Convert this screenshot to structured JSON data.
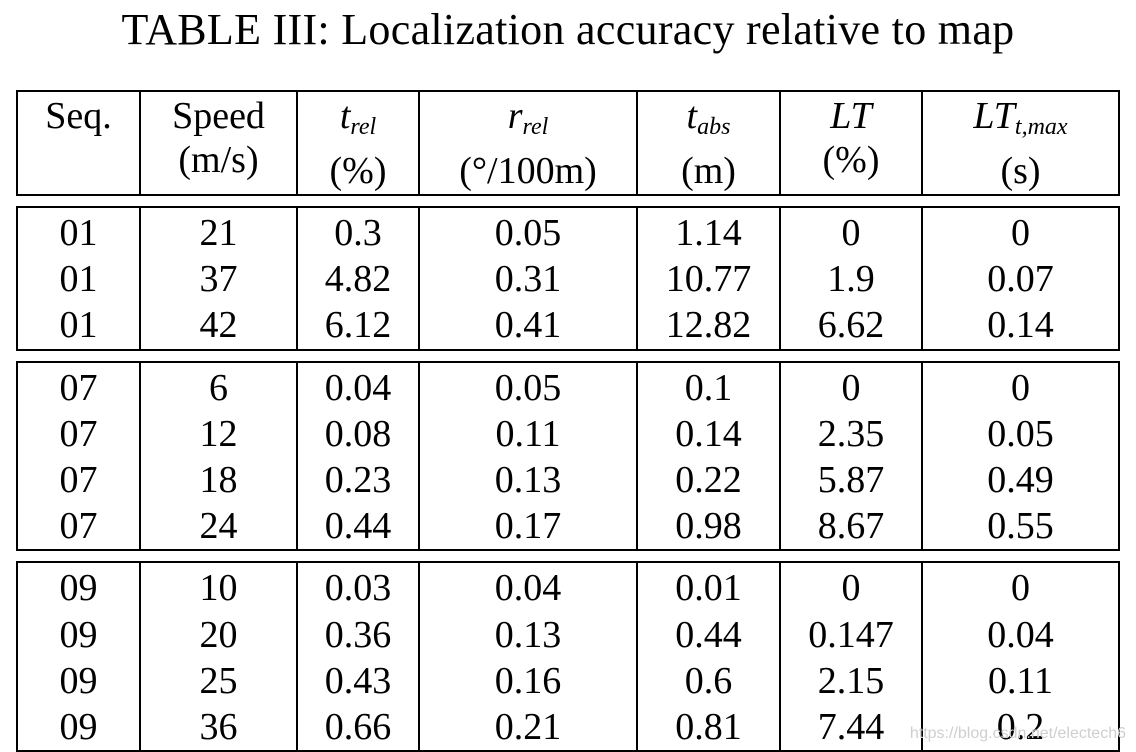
{
  "title": "TABLE III: Localization accuracy relative to map",
  "headers": [
    {
      "main": "Seq.",
      "unit": ""
    },
    {
      "main": "Speed",
      "unit": "(m/s)"
    },
    {
      "main_base": "t",
      "main_sub": "rel",
      "unit": "(%)"
    },
    {
      "main_base": "r",
      "main_sub": "rel",
      "unit": "(°/100m)"
    },
    {
      "main_base": "t",
      "main_sub": "abs",
      "unit": "(m)"
    },
    {
      "main_base": "LT",
      "main_sub": "",
      "unit": "(%)"
    },
    {
      "main_base": "LT",
      "main_sub": "t,max",
      "unit": "(s)"
    }
  ],
  "groups": [
    {
      "rows": [
        [
          "01",
          "21",
          "0.3",
          "0.05",
          "1.14",
          "0",
          "0"
        ],
        [
          "01",
          "37",
          "4.82",
          "0.31",
          "10.77",
          "1.9",
          "0.07"
        ],
        [
          "01",
          "42",
          "6.12",
          "0.41",
          "12.82",
          "6.62",
          "0.14"
        ]
      ]
    },
    {
      "rows": [
        [
          "07",
          "6",
          "0.04",
          "0.05",
          "0.1",
          "0",
          "0"
        ],
        [
          "07",
          "12",
          "0.08",
          "0.11",
          "0.14",
          "2.35",
          "0.05"
        ],
        [
          "07",
          "18",
          "0.23",
          "0.13",
          "0.22",
          "5.87",
          "0.49"
        ],
        [
          "07",
          "24",
          "0.44",
          "0.17",
          "0.98",
          "8.67",
          "0.55"
        ]
      ]
    },
    {
      "rows": [
        [
          "09",
          "10",
          "0.03",
          "0.04",
          "0.01",
          "0",
          "0"
        ],
        [
          "09",
          "20",
          "0.36",
          "0.13",
          "0.44",
          "0.147",
          "0.04"
        ],
        [
          "09",
          "25",
          "0.43",
          "0.16",
          "0.6",
          "2.15",
          "0.11"
        ],
        [
          "09",
          "36",
          "0.66",
          "0.21",
          "0.81",
          "7.44",
          "0.2"
        ]
      ]
    }
  ],
  "watermark": "https://blog.csdn.net/electech6"
}
